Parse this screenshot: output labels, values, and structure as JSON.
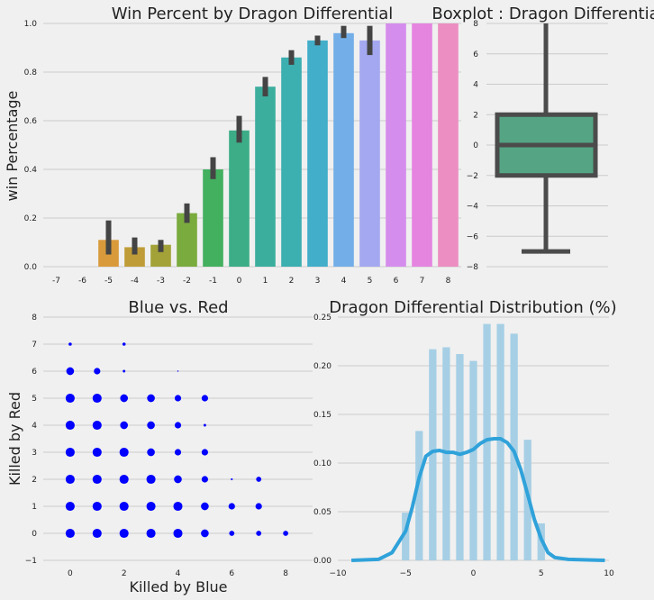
{
  "chart_data": [
    {
      "id": "win_percent",
      "type": "bar",
      "title": "Win Percent by Dragon Differential",
      "xlabel": "",
      "ylabel": "win Percentage",
      "ylim": [
        0,
        1
      ],
      "yticks": [
        "0.0",
        "0.2",
        "0.4",
        "0.6",
        "0.8",
        "1.0"
      ],
      "categories": [
        "-7",
        "-6",
        "-5",
        "-4",
        "-3",
        "-2",
        "-1",
        "0",
        "1",
        "2",
        "3",
        "4",
        "5",
        "6",
        "7",
        "8"
      ],
      "values": [
        0,
        0,
        0.11,
        0.08,
        0.09,
        0.22,
        0.4,
        0.56,
        0.74,
        0.86,
        0.93,
        0.96,
        0.93,
        1.0,
        1.0,
        1.0
      ],
      "ci_low": [
        null,
        null,
        0.05,
        0.05,
        0.06,
        0.18,
        0.36,
        0.51,
        0.7,
        0.83,
        0.91,
        0.94,
        0.87,
        null,
        null,
        null
      ],
      "ci_high": [
        null,
        null,
        0.19,
        0.12,
        0.11,
        0.26,
        0.45,
        0.62,
        0.78,
        0.89,
        0.95,
        0.99,
        0.99,
        null,
        null,
        null
      ],
      "colors": [
        "#f07a5a",
        "#e88b46",
        "#d99a3b",
        "#bf9c38",
        "#a3a238",
        "#7aab3e",
        "#43b060",
        "#3cad87",
        "#3cae9e",
        "#3cafb0",
        "#42aec9",
        "#73aee8",
        "#a3a8f0",
        "#d58ded",
        "#e585e0",
        "#ec8ec2"
      ],
      "grid": true
    },
    {
      "id": "boxplot",
      "type": "box",
      "title": "Boxplot : Dragon Differential",
      "ylim": [
        -8,
        8
      ],
      "yticks": [
        "8",
        "6",
        "4",
        "2",
        "0",
        "−2",
        "−4",
        "−6",
        "−8"
      ],
      "ytick_values": [
        8,
        6,
        4,
        2,
        0,
        -2,
        -4,
        -6,
        -8
      ],
      "whisker_low": -7,
      "q1": -2,
      "median": 0,
      "q3": 2,
      "whisker_high": 8,
      "box_color": "#55a584",
      "line_color": "#4b4b4b",
      "grid": true
    },
    {
      "id": "blue_vs_red",
      "type": "scatter",
      "title": "Blue vs. Red",
      "xlabel": "Killed by Blue",
      "ylabel": "Killed by Red",
      "xlim": [
        -1,
        9
      ],
      "ylim": [
        -1,
        8
      ],
      "xticks": [
        "0",
        "2",
        "4",
        "6",
        "8"
      ],
      "xtick_values": [
        0,
        2,
        4,
        6,
        8
      ],
      "yticks": [
        "8",
        "7",
        "6",
        "5",
        "4",
        "3",
        "2",
        "1",
        "0",
        "−1"
      ],
      "ytick_values": [
        8,
        7,
        6,
        5,
        4,
        3,
        2,
        1,
        0,
        -1
      ],
      "color": "#0000ff",
      "grid": true,
      "points": [
        {
          "x": 0,
          "y": 0,
          "size": 7
        },
        {
          "x": 1,
          "y": 0,
          "size": 7
        },
        {
          "x": 2,
          "y": 0,
          "size": 7
        },
        {
          "x": 3,
          "y": 0,
          "size": 7
        },
        {
          "x": 4,
          "y": 0,
          "size": 7
        },
        {
          "x": 5,
          "y": 0,
          "size": 6
        },
        {
          "x": 6,
          "y": 0,
          "size": 4
        },
        {
          "x": 7,
          "y": 0,
          "size": 4
        },
        {
          "x": 8,
          "y": 0,
          "size": 4
        },
        {
          "x": 0,
          "y": 1,
          "size": 7
        },
        {
          "x": 1,
          "y": 1,
          "size": 7
        },
        {
          "x": 2,
          "y": 1,
          "size": 7
        },
        {
          "x": 3,
          "y": 1,
          "size": 7
        },
        {
          "x": 4,
          "y": 1,
          "size": 7
        },
        {
          "x": 5,
          "y": 1,
          "size": 6
        },
        {
          "x": 6,
          "y": 1,
          "size": 5
        },
        {
          "x": 7,
          "y": 1,
          "size": 5
        },
        {
          "x": 0,
          "y": 2,
          "size": 7
        },
        {
          "x": 1,
          "y": 2,
          "size": 7
        },
        {
          "x": 2,
          "y": 2,
          "size": 7
        },
        {
          "x": 3,
          "y": 2,
          "size": 7
        },
        {
          "x": 4,
          "y": 2,
          "size": 6
        },
        {
          "x": 5,
          "y": 2,
          "size": 5
        },
        {
          "x": 6,
          "y": 2,
          "size": 1.5
        },
        {
          "x": 7,
          "y": 2,
          "size": 4
        },
        {
          "x": 0,
          "y": 3,
          "size": 7
        },
        {
          "x": 1,
          "y": 3,
          "size": 7
        },
        {
          "x": 2,
          "y": 3,
          "size": 7
        },
        {
          "x": 3,
          "y": 3,
          "size": 6
        },
        {
          "x": 4,
          "y": 3,
          "size": 5
        },
        {
          "x": 5,
          "y": 3,
          "size": 5
        },
        {
          "x": 0,
          "y": 4,
          "size": 7
        },
        {
          "x": 1,
          "y": 4,
          "size": 7
        },
        {
          "x": 2,
          "y": 4,
          "size": 6
        },
        {
          "x": 3,
          "y": 4,
          "size": 6
        },
        {
          "x": 4,
          "y": 4,
          "size": 5
        },
        {
          "x": 5,
          "y": 4,
          "size": 2
        },
        {
          "x": 0,
          "y": 5,
          "size": 7
        },
        {
          "x": 1,
          "y": 5,
          "size": 7
        },
        {
          "x": 2,
          "y": 5,
          "size": 6
        },
        {
          "x": 3,
          "y": 5,
          "size": 6
        },
        {
          "x": 4,
          "y": 5,
          "size": 5
        },
        {
          "x": 5,
          "y": 5,
          "size": 5
        },
        {
          "x": 0,
          "y": 6,
          "size": 6
        },
        {
          "x": 1,
          "y": 6,
          "size": 5
        },
        {
          "x": 2,
          "y": 6,
          "size": 2
        },
        {
          "x": 4,
          "y": 6,
          "size": 1
        },
        {
          "x": 0,
          "y": 7,
          "size": 2.5
        },
        {
          "x": 2,
          "y": 7,
          "size": 2.5
        }
      ]
    },
    {
      "id": "distribution",
      "type": "histogram",
      "title": "Dragon Differential Distribution (%)",
      "xlim": [
        -10,
        10
      ],
      "ylim": [
        0,
        0.25
      ],
      "xticks": [
        "−10",
        "−5",
        "0",
        "5",
        "10"
      ],
      "xtick_values": [
        -10,
        -5,
        0,
        5,
        10
      ],
      "yticks": [
        "0.25",
        "0.20",
        "0.15",
        "0.10",
        "0.05",
        "0.00"
      ],
      "ytick_values": [
        0.25,
        0.2,
        0.15,
        0.1,
        0.05,
        0
      ],
      "bar_color": "#a6cfe5",
      "line_color": "#30a2da",
      "bins": [
        {
          "x": -5,
          "value": 0.049
        },
        {
          "x": -4,
          "value": 0.133
        },
        {
          "x": -3,
          "value": 0.217
        },
        {
          "x": -2,
          "value": 0.219
        },
        {
          "x": -1,
          "value": 0.212
        },
        {
          "x": 0,
          "value": 0.205
        },
        {
          "x": 1,
          "value": 0.243
        },
        {
          "x": 2,
          "value": 0.243
        },
        {
          "x": 3,
          "value": 0.233
        },
        {
          "x": 4,
          "value": 0.124
        },
        {
          "x": 5,
          "value": 0.038
        }
      ],
      "kde": [
        {
          "x": -9,
          "y": 0
        },
        {
          "x": -7,
          "y": 0.001
        },
        {
          "x": -6,
          "y": 0.008
        },
        {
          "x": -5,
          "y": 0.03
        },
        {
          "x": -4.5,
          "y": 0.055
        },
        {
          "x": -4,
          "y": 0.085
        },
        {
          "x": -3.5,
          "y": 0.107
        },
        {
          "x": -3,
          "y": 0.112
        },
        {
          "x": -2.5,
          "y": 0.113
        },
        {
          "x": -2,
          "y": 0.111
        },
        {
          "x": -1.5,
          "y": 0.111
        },
        {
          "x": -1,
          "y": 0.109
        },
        {
          "x": -0.5,
          "y": 0.111
        },
        {
          "x": 0,
          "y": 0.114
        },
        {
          "x": 0.5,
          "y": 0.12
        },
        {
          "x": 1,
          "y": 0.124
        },
        {
          "x": 1.5,
          "y": 0.125
        },
        {
          "x": 2,
          "y": 0.125
        },
        {
          "x": 2.5,
          "y": 0.121
        },
        {
          "x": 3,
          "y": 0.112
        },
        {
          "x": 3.5,
          "y": 0.093
        },
        {
          "x": 4,
          "y": 0.068
        },
        {
          "x": 4.5,
          "y": 0.042
        },
        {
          "x": 5,
          "y": 0.022
        },
        {
          "x": 5.5,
          "y": 0.008
        },
        {
          "x": 6,
          "y": 0.003
        },
        {
          "x": 7,
          "y": 0.001
        },
        {
          "x": 9.7,
          "y": 0
        }
      ],
      "grid": true
    }
  ]
}
